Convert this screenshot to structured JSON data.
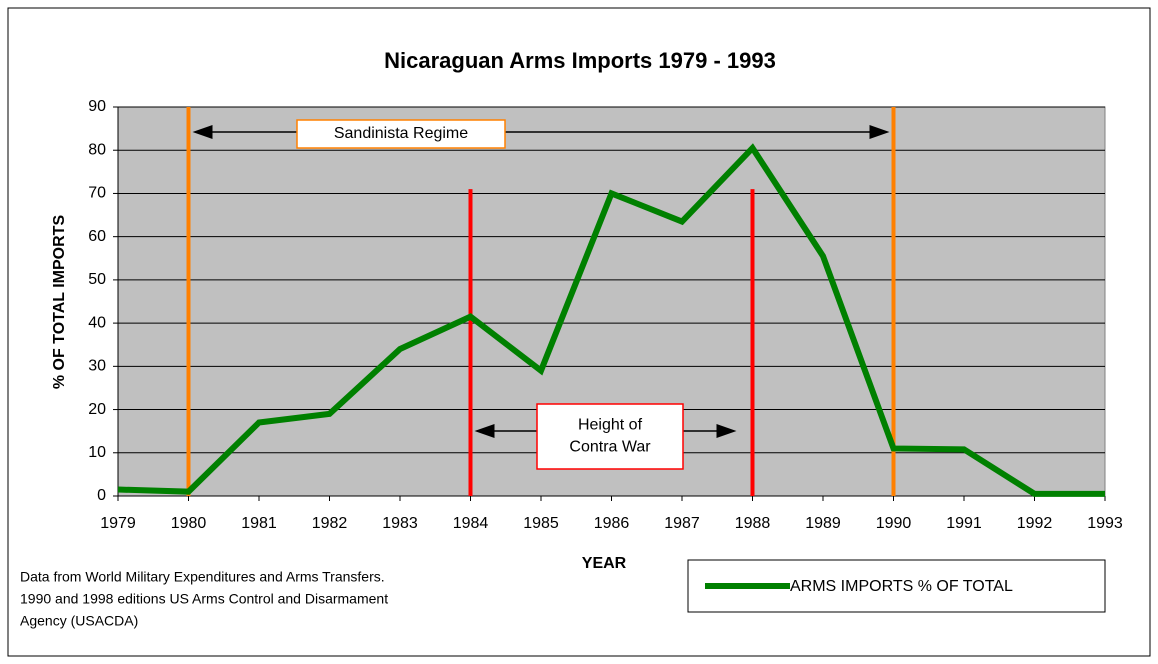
{
  "chart_data": {
    "type": "line",
    "title": "Nicaraguan Arms Imports 1979 - 1993",
    "x_label": "YEAR",
    "y_label": "% OF TOTAL IMPORTS",
    "x": [
      1979,
      1980,
      1981,
      1982,
      1983,
      1984,
      1985,
      1986,
      1987,
      1988,
      1989,
      1990,
      1991,
      1992,
      1993
    ],
    "series": [
      {
        "name": "ARMS IMPORTS % OF TOTAL",
        "color": "#008000",
        "values": [
          1.5,
          1,
          17,
          19,
          34,
          41.5,
          29,
          70,
          63.5,
          80.5,
          55.5,
          11,
          10.8,
          0.5,
          0.5
        ]
      }
    ],
    "xlim": [
      1979,
      1993
    ],
    "xticks": [
      1979,
      1980,
      1981,
      1982,
      1983,
      1984,
      1985,
      1986,
      1987,
      1988,
      1989,
      1990,
      1991,
      1992,
      1993
    ],
    "ylim": [
      0,
      90
    ],
    "yticks": [
      0,
      10,
      20,
      30,
      40,
      50,
      60,
      70,
      80,
      90
    ],
    "grid": true,
    "plot_background": "#c0c0c0",
    "vlines": [
      {
        "x": 1980,
        "color": "#ff8000"
      },
      {
        "x": 1990,
        "color": "#ff8000"
      },
      {
        "x": 1984,
        "color": "#ff0000",
        "ymax": 71
      },
      {
        "x": 1988,
        "color": "#ff0000",
        "ymax": 71
      }
    ],
    "annotations": [
      {
        "lines": [
          "Sandinista Regime"
        ],
        "from": 1980,
        "to": 1990,
        "color": "#ff8000"
      },
      {
        "lines": [
          "Height of",
          "Contra War"
        ],
        "from": 1984,
        "to": 1988,
        "color": "#ff0000"
      }
    ],
    "source": [
      "Data from World Military Expenditures and Arms Transfers.",
      "1990 and 1998 editions US Arms Control and Disarmament",
      "Agency (USACDA)"
    ]
  }
}
